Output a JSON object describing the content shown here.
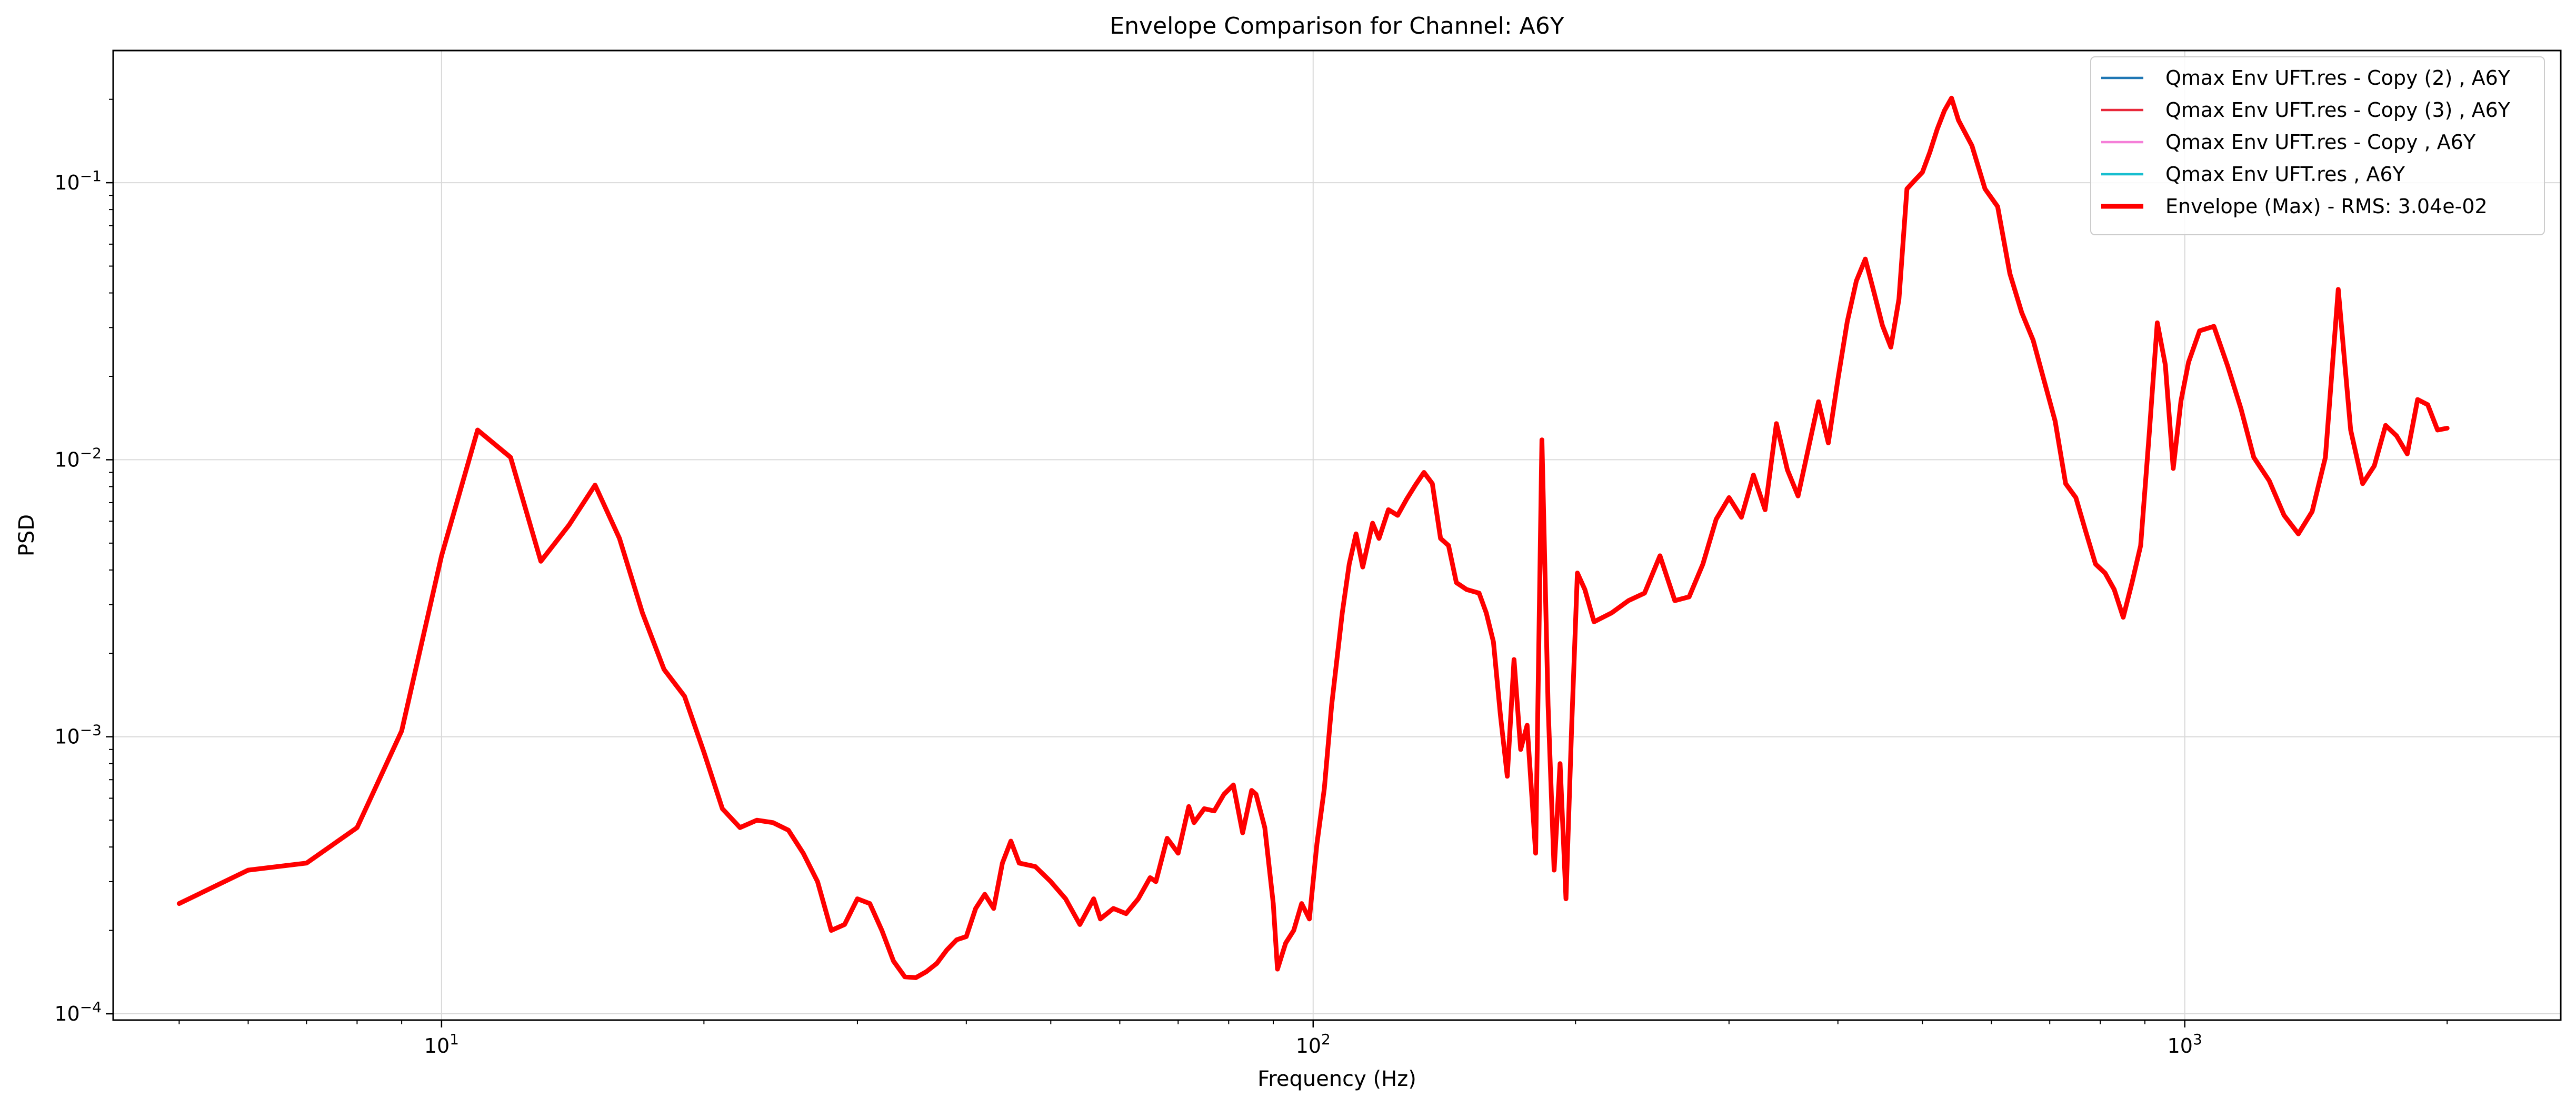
{
  "chart_data": {
    "type": "line",
    "title": "Envelope Comparison for Channel: A6Y",
    "xlabel": "Frequency (Hz)",
    "ylabel": "PSD",
    "xscale": "log",
    "yscale": "log",
    "xlim": [
      4.2,
      2700
    ],
    "ylim": [
      9.49e-05,
      0.3
    ],
    "grid": true,
    "legend_position": "top-right",
    "x_ticks": [
      {
        "base": "10",
        "exp": "1",
        "value": 10
      },
      {
        "base": "10",
        "exp": "2",
        "value": 100
      },
      {
        "base": "10",
        "exp": "3",
        "value": 1000
      }
    ],
    "y_ticks": [
      {
        "base": "10",
        "exp": "−4",
        "value": 0.0001
      },
      {
        "base": "10",
        "exp": "−3",
        "value": 0.001
      },
      {
        "base": "10",
        "exp": "−2",
        "value": 0.01
      },
      {
        "base": "10",
        "exp": "−1",
        "value": 0.1
      }
    ],
    "series": [
      {
        "name": "Qmax Env UFT.res - Copy (2) , A6Y",
        "color": "#1f77b4",
        "linewidth": 1.5,
        "points": []
      },
      {
        "name": "Qmax Env UFT.res - Copy (3) , A6Y",
        "color": "#e8283a",
        "linewidth": 1.5,
        "points": []
      },
      {
        "name": "Qmax Env UFT.res - Copy , A6Y",
        "color": "#f57fd8",
        "linewidth": 1.5,
        "points": []
      },
      {
        "name": "Qmax Env UFT.res , A6Y",
        "color": "#17becf",
        "linewidth": 1.5,
        "points": []
      },
      {
        "name": "Envelope (Max) - RMS: 3.04e-02",
        "color": "#ff0000",
        "linewidth": 3,
        "points": [
          [
            5,
            0.00025
          ],
          [
            6,
            0.00033
          ],
          [
            7,
            0.00035
          ],
          [
            8,
            0.00047
          ],
          [
            9,
            0.00105
          ],
          [
            10,
            0.0045
          ],
          [
            11,
            0.0128
          ],
          [
            12,
            0.0102
          ],
          [
            13,
            0.0043
          ],
          [
            14,
            0.0058
          ],
          [
            15,
            0.0081
          ],
          [
            16,
            0.0052
          ],
          [
            17,
            0.0028
          ],
          [
            18,
            0.00175
          ],
          [
            19,
            0.0014
          ],
          [
            20,
            0.00088
          ],
          [
            21,
            0.00055
          ],
          [
            22,
            0.00047
          ],
          [
            23,
            0.0005
          ],
          [
            24,
            0.00049
          ],
          [
            25,
            0.00046
          ],
          [
            26,
            0.00038
          ],
          [
            27,
            0.0003
          ],
          [
            28,
            0.0002
          ],
          [
            29,
            0.00021
          ],
          [
            30,
            0.00026
          ],
          [
            31,
            0.00025
          ],
          [
            32,
            0.0002
          ],
          [
            33,
            0.000155
          ],
          [
            34,
            0.000136
          ],
          [
            35,
            0.000135
          ],
          [
            36,
            0.000142
          ],
          [
            37,
            0.000152
          ],
          [
            38,
            0.00017
          ],
          [
            39,
            0.000185
          ],
          [
            40,
            0.00019
          ],
          [
            41,
            0.00024
          ],
          [
            42,
            0.00027
          ],
          [
            43,
            0.00024
          ],
          [
            44,
            0.00035
          ],
          [
            45,
            0.00042
          ],
          [
            46,
            0.00035
          ],
          [
            48,
            0.00034
          ],
          [
            50,
            0.0003
          ],
          [
            52,
            0.00026
          ],
          [
            54,
            0.00021
          ],
          [
            56,
            0.00026
          ],
          [
            57,
            0.00022
          ],
          [
            59,
            0.00024
          ],
          [
            61,
            0.00023
          ],
          [
            63,
            0.00026
          ],
          [
            65,
            0.00031
          ],
          [
            66,
            0.0003
          ],
          [
            68,
            0.00043
          ],
          [
            70,
            0.00038
          ],
          [
            72,
            0.00056
          ],
          [
            73,
            0.00049
          ],
          [
            75,
            0.00055
          ],
          [
            77,
            0.00054
          ],
          [
            79,
            0.00062
          ],
          [
            81,
            0.00067
          ],
          [
            83,
            0.00045
          ],
          [
            85,
            0.00064
          ],
          [
            86,
            0.00062
          ],
          [
            88,
            0.00047
          ],
          [
            90,
            0.00025
          ],
          [
            91,
            0.000145
          ],
          [
            93,
            0.00018
          ],
          [
            95,
            0.0002
          ],
          [
            97,
            0.00025
          ],
          [
            99,
            0.00022
          ],
          [
            101,
            0.00041
          ],
          [
            103,
            0.00065
          ],
          [
            105,
            0.0013
          ],
          [
            108,
            0.0028
          ],
          [
            110,
            0.0042
          ],
          [
            112,
            0.0054
          ],
          [
            114,
            0.0041
          ],
          [
            117,
            0.0059
          ],
          [
            119,
            0.0052
          ],
          [
            122,
            0.0066
          ],
          [
            125,
            0.0063
          ],
          [
            128,
            0.0072
          ],
          [
            131,
            0.0081
          ],
          [
            134,
            0.009
          ],
          [
            137,
            0.0082
          ],
          [
            140,
            0.0052
          ],
          [
            143,
            0.0049
          ],
          [
            146,
            0.0036
          ],
          [
            150,
            0.0034
          ],
          [
            155,
            0.0033
          ],
          [
            158,
            0.0028
          ],
          [
            161,
            0.0022
          ],
          [
            164,
            0.0012
          ],
          [
            167,
            0.00072
          ],
          [
            170,
            0.0019
          ],
          [
            173,
            0.0009
          ],
          [
            176,
            0.0011
          ],
          [
            180,
            0.00038
          ],
          [
            183,
            0.0118
          ],
          [
            186,
            0.0013
          ],
          [
            189,
            0.00033
          ],
          [
            192,
            0.0008
          ],
          [
            195,
            0.00026
          ],
          [
            198,
            0.0011
          ],
          [
            201,
            0.0039
          ],
          [
            205,
            0.0034
          ],
          [
            210,
            0.0026
          ],
          [
            220,
            0.0028
          ],
          [
            230,
            0.0031
          ],
          [
            240,
            0.0033
          ],
          [
            250,
            0.0045
          ],
          [
            260,
            0.0031
          ],
          [
            270,
            0.0032
          ],
          [
            280,
            0.0042
          ],
          [
            290,
            0.0061
          ],
          [
            300,
            0.0073
          ],
          [
            310,
            0.0062
          ],
          [
            320,
            0.0088
          ],
          [
            330,
            0.0066
          ],
          [
            340,
            0.0135
          ],
          [
            350,
            0.0092
          ],
          [
            360,
            0.0074
          ],
          [
            370,
            0.011
          ],
          [
            380,
            0.0162
          ],
          [
            390,
            0.0115
          ],
          [
            400,
            0.0195
          ],
          [
            410,
            0.0315
          ],
          [
            420,
            0.0442
          ],
          [
            430,
            0.053
          ],
          [
            440,
            0.0402
          ],
          [
            450,
            0.0305
          ],
          [
            460,
            0.0255
          ],
          [
            470,
            0.038
          ],
          [
            480,
            0.095
          ],
          [
            490,
            0.102
          ],
          [
            500,
            0.109
          ],
          [
            510,
            0.129
          ],
          [
            520,
            0.156
          ],
          [
            530,
            0.182
          ],
          [
            540,
            0.202
          ],
          [
            550,
            0.168
          ],
          [
            570,
            0.136
          ],
          [
            590,
            0.095
          ],
          [
            610,
            0.082
          ],
          [
            630,
            0.047
          ],
          [
            650,
            0.034
          ],
          [
            670,
            0.027
          ],
          [
            690,
            0.0192
          ],
          [
            710,
            0.0138
          ],
          [
            730,
            0.0082
          ],
          [
            750,
            0.0073
          ],
          [
            770,
            0.0055
          ],
          [
            790,
            0.0042
          ],
          [
            810,
            0.0039
          ],
          [
            830,
            0.0034
          ],
          [
            850,
            0.0027
          ],
          [
            870,
            0.0036
          ],
          [
            890,
            0.0049
          ],
          [
            910,
            0.0122
          ],
          [
            930,
            0.0312
          ],
          [
            950,
            0.022
          ],
          [
            970,
            0.0093
          ],
          [
            990,
            0.0163
          ],
          [
            1010,
            0.0225
          ],
          [
            1040,
            0.0292
          ],
          [
            1080,
            0.0303
          ],
          [
            1120,
            0.0218
          ],
          [
            1160,
            0.0153
          ],
          [
            1200,
            0.0102
          ],
          [
            1250,
            0.0084
          ],
          [
            1300,
            0.0063
          ],
          [
            1350,
            0.0054
          ],
          [
            1400,
            0.0065
          ],
          [
            1450,
            0.0102
          ],
          [
            1500,
            0.0412
          ],
          [
            1550,
            0.0128
          ],
          [
            1600,
            0.0082
          ],
          [
            1650,
            0.0095
          ],
          [
            1700,
            0.0133
          ],
          [
            1750,
            0.0122
          ],
          [
            1800,
            0.0105
          ],
          [
            1850,
            0.0165
          ],
          [
            1900,
            0.0158
          ],
          [
            1950,
            0.0128
          ],
          [
            2000,
            0.013
          ]
        ]
      }
    ]
  }
}
